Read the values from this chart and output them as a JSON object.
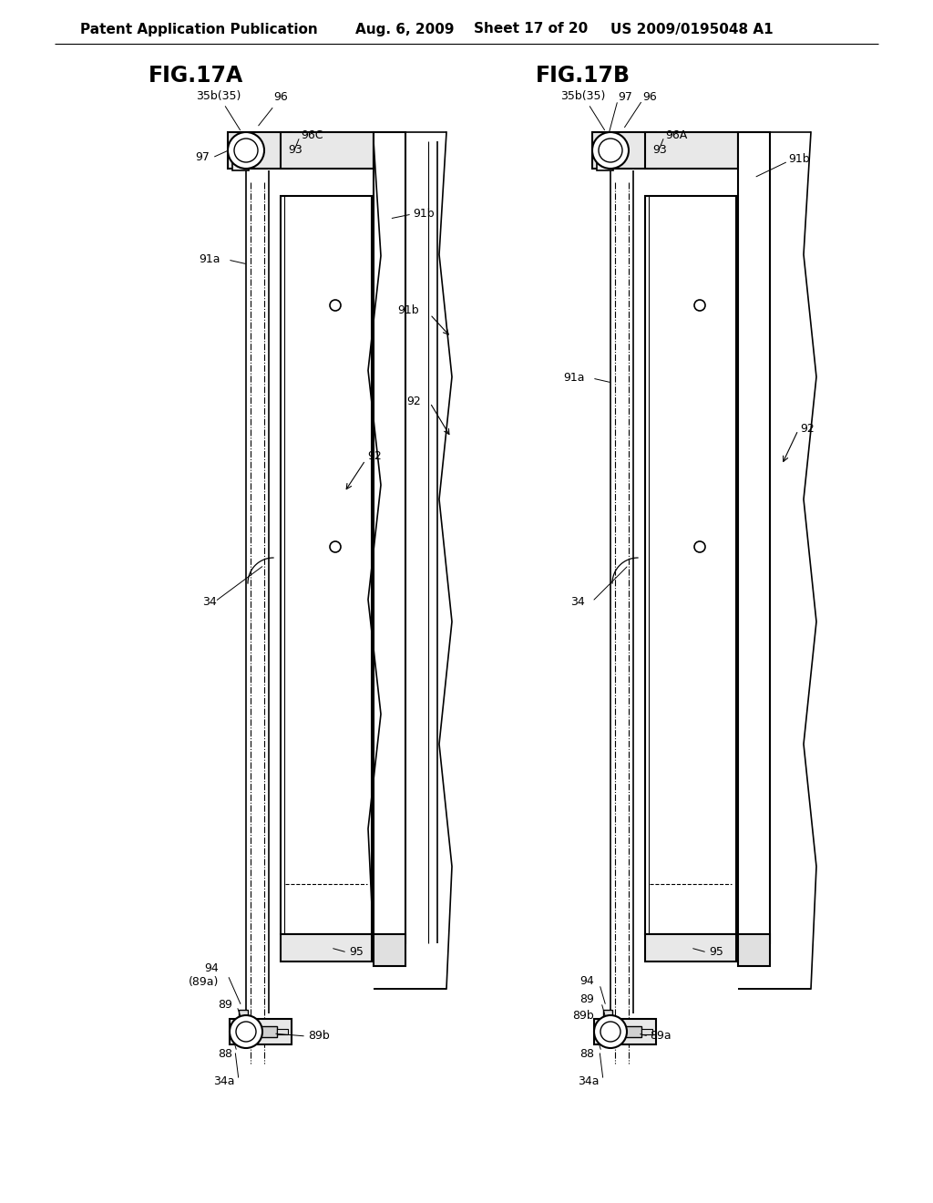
{
  "bg_color": "#ffffff",
  "header_text": "Patent Application Publication",
  "header_date": "Aug. 6, 2009",
  "header_sheet": "Sheet 17 of 20",
  "header_patent": "US 2009/0195048 A1",
  "fig_left_title": "FIG.17A",
  "fig_right_title": "FIG.17B"
}
